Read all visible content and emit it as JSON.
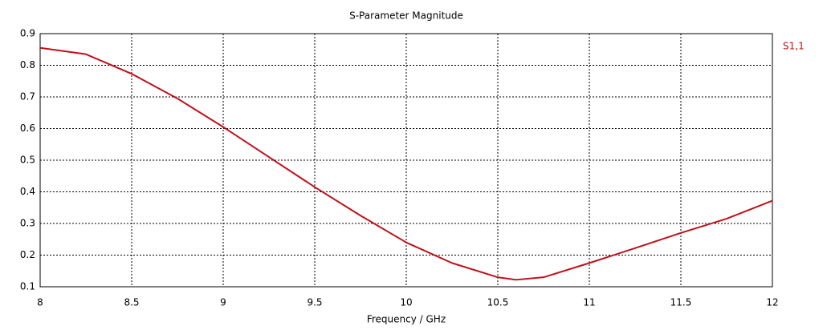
{
  "chart_data": {
    "type": "line",
    "title": "S-Parameter Magnitude",
    "x_label": "Frequency / GHz",
    "x": [
      8,
      8.25,
      8.5,
      8.75,
      9,
      9.25,
      9.5,
      9.75,
      10,
      10.25,
      10.5,
      10.6,
      10.75,
      11,
      11.25,
      11.5,
      11.75,
      12
    ],
    "series": [
      {
        "name": "S1,1",
        "color": "#c0101a",
        "values": [
          0.855,
          0.835,
          0.773,
          0.695,
          0.605,
          0.51,
          0.415,
          0.325,
          0.24,
          0.175,
          0.13,
          0.122,
          0.13,
          0.175,
          0.222,
          0.27,
          0.315,
          0.372
        ]
      }
    ],
    "xlim": [
      8,
      12
    ],
    "xticks": [
      8,
      8.5,
      9,
      9.5,
      10,
      10.5,
      11,
      11.5,
      12
    ],
    "ylim": [
      0.1,
      0.9
    ],
    "yticks": [
      0.1,
      0.2,
      0.3,
      0.4,
      0.5,
      0.6,
      0.7,
      0.8,
      0.9
    ],
    "grid": true,
    "legend": "right"
  }
}
